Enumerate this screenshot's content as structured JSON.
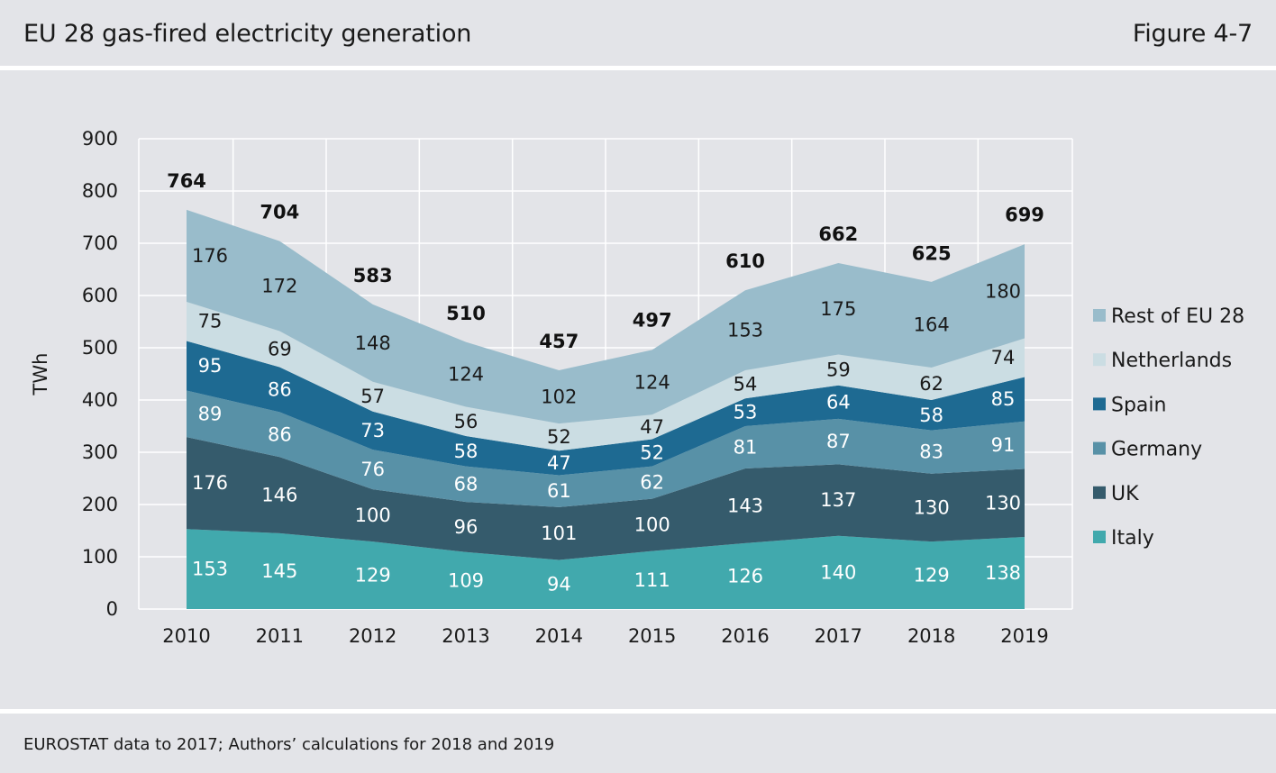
{
  "header": {
    "title": "EU 28 gas-fired electricity generation",
    "figure_label": "Figure 4-7"
  },
  "footer": {
    "note": "EUROSTAT data to 2017; Authors’ calculations for 2018 and 2019"
  },
  "chart_data": {
    "type": "area",
    "stacked": true,
    "ylabel": "TWh",
    "xlabel": "",
    "ylim": [
      0,
      900
    ],
    "yticks": [
      0,
      100,
      200,
      300,
      400,
      500,
      600,
      700,
      800,
      900
    ],
    "grid": true,
    "legend_position": "right",
    "categories": [
      "2010",
      "2011",
      "2012",
      "2013",
      "2014",
      "2015",
      "2016",
      "2017",
      "2018",
      "2019"
    ],
    "totals": [
      764,
      704,
      583,
      510,
      457,
      497,
      610,
      662,
      625,
      699
    ],
    "series": [
      {
        "name": "Italy",
        "color": "#41a9ad",
        "values": [
          153,
          145,
          129,
          109,
          94,
          111,
          126,
          140,
          129,
          138
        ]
      },
      {
        "name": "UK",
        "color": "#355b6c",
        "values": [
          176,
          146,
          100,
          96,
          101,
          100,
          143,
          137,
          130,
          130
        ]
      },
      {
        "name": "Germany",
        "color": "#5891a7",
        "values": [
          89,
          86,
          76,
          68,
          61,
          62,
          81,
          87,
          83,
          91
        ]
      },
      {
        "name": "Spain",
        "color": "#1e6a92",
        "values": [
          95,
          86,
          73,
          58,
          47,
          52,
          53,
          64,
          58,
          85
        ]
      },
      {
        "name": "Netherlands",
        "color": "#cbdde3",
        "values": [
          75,
          69,
          57,
          56,
          52,
          47,
          54,
          59,
          62,
          74
        ]
      },
      {
        "name": "Rest of EU 28",
        "color": "#99bccb",
        "values": [
          176,
          172,
          148,
          124,
          102,
          124,
          153,
          175,
          164,
          180
        ]
      }
    ]
  }
}
